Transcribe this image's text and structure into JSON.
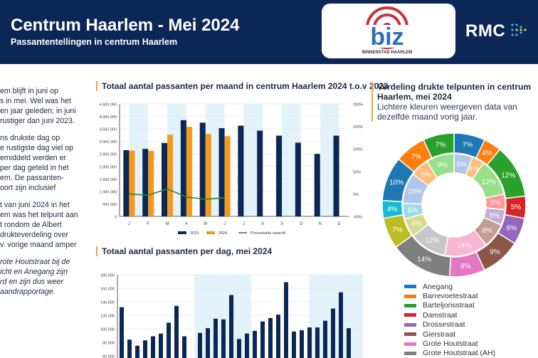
{
  "header": {
    "title": "Centrum Haarlem - Mei 2024",
    "subtitle": "Passantentellingen in centrum Haarlem",
    "logo_biz": "biz BINNENSTAD HAARLEM",
    "logo_rmc": "RMC"
  },
  "left_text": {
    "p1": [
      "em blijft in juni op",
      "s in mei. Wel was het",
      "en jaar geleden; in juni",
      " rustiger dan juni 2023."
    ],
    "p2": [
      "ns drukste dag op",
      "e rustigste dag viel op",
      "emiddeld werden er",
      " per dag geteld in het",
      "em. De passanten-",
      "oort zijn inclusief"
    ],
    "p3": [
      "t van juni 2024 in het",
      "em was het telpunt aan",
      "t rondom de Albert",
      "drukteverdeling over",
      "v. vorige maand amper"
    ],
    "p4": [
      "rote Houtstraat bij de",
      "icht en Anegang zijn",
      "rd en zijn dus weer",
      "aandrapportage."
    ]
  },
  "chart_data": [
    {
      "type": "bar",
      "title": "Totaal aantal passanten per maand in centrum Haarlem 2024 t.o.v 2023",
      "categories": [
        "J",
        "F",
        "M",
        "A",
        "M",
        "J",
        "J",
        "A",
        "S",
        "O",
        "N",
        "D"
      ],
      "series": [
        {
          "name": "2023",
          "color": "#0c2756",
          "values": [
            2650000,
            2700000,
            2940000,
            3850000,
            3750000,
            3530000,
            3630000,
            3430000,
            3230000,
            2950000,
            2500000,
            3230000
          ]
        },
        {
          "name": "2024",
          "color": "#f39a1e",
          "values": [
            2630000,
            2620000,
            3270000,
            3580000,
            3300000,
            3210000,
            null,
            null,
            null,
            null,
            null,
            null
          ]
        },
        {
          "name": "Procentuele verschil",
          "type": "line",
          "axis": "right",
          "color": "#2a8a2a",
          "values": [
            0,
            -3,
            11,
            -7,
            -12,
            -9,
            null,
            null,
            null,
            null,
            null,
            null
          ]
        }
      ],
      "ylim": [
        0,
        4500000
      ],
      "yticks": [
        "0",
        "500.000",
        "1.000.000",
        "1.500.000",
        "2.000.000",
        "2.500.000",
        "3.000.000",
        "3.500.000",
        "4.000.000",
        "4.500.000"
      ],
      "y2lim": [
        -50,
        200
      ],
      "y2ticks": [
        "-50%",
        "0%",
        "50%",
        "100%",
        "150%",
        "200%"
      ],
      "legend": "bottom",
      "grid": true
    },
    {
      "type": "bar",
      "title": "Totaal aantal passanten per dag, mei 2024",
      "color": "#0c2756",
      "values": [
        132000,
        84000,
        75000,
        83000,
        89000,
        93000,
        109000,
        134000,
        89000,
        null,
        94000,
        101000,
        115000,
        114000,
        150000,
        85000,
        93000,
        97000,
        111000,
        116000,
        121000,
        169000,
        96000,
        98000,
        102000,
        102000,
        112000,
        130000,
        154000,
        101000
      ],
      "ylim_visible": [
        60000,
        180000
      ],
      "yticks": [
        "60.000",
        "80.000",
        "100.000",
        "120.000",
        "140.000",
        "160.000",
        "180.000"
      ],
      "grid": true
    },
    {
      "type": "pie",
      "title": "Verdeling drukte telpunten in centrum Haarlem, mei 2024",
      "subtitle": "Lichtere kleuren weergeven data van dezelfde maand vorig jaar.",
      "outer_2024": [
        7,
        4,
        12,
        5,
        6,
        9,
        8,
        14,
        7,
        4,
        10,
        7,
        7
      ],
      "inner_2023": [
        6,
        4,
        12,
        5,
        5,
        8,
        14,
        12,
        6,
        5,
        10,
        6,
        9
      ],
      "colors": [
        "#1f77b4",
        "#ff7f0e",
        "#2ca02c",
        "#d62728",
        "#9467bd",
        "#8c564b",
        "#e377c2",
        "#7f7f7f",
        "#bcbd22",
        "#17becf",
        "#1f77b4",
        "#ff7f0e",
        "#2ca02c"
      ],
      "light_colors": [
        "#aec7e8",
        "#ffbb78",
        "#98df8a",
        "#ff9896",
        "#c5b0d5",
        "#c49c94",
        "#f7b6d2",
        "#c7c7c7",
        "#dbdb8d",
        "#9edae5",
        "#aec7e8",
        "#ffbb78",
        "#98df8a"
      ],
      "legend": [
        {
          "label": "Anegang",
          "color": "#1f77b4"
        },
        {
          "label": "Barrevoetestraat",
          "color": "#ff7f0e"
        },
        {
          "label": "Barteljorisstraat",
          "color": "#2ca02c"
        },
        {
          "label": "Damstraat",
          "color": "#d62728"
        },
        {
          "label": "Drossestraat",
          "color": "#9467bd"
        },
        {
          "label": "Gierstraat",
          "color": "#8c564b"
        },
        {
          "label": "Grote Houtstraat",
          "color": "#e377c2"
        },
        {
          "label": "Grote Houtstraat (AH)",
          "color": "#7f7f7f"
        }
      ]
    }
  ]
}
